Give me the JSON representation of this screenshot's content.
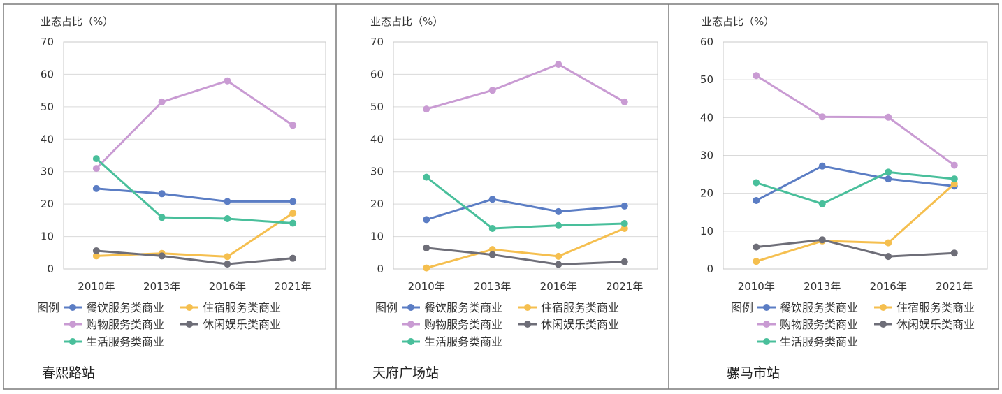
{
  "legend_title": "图例",
  "colors": {
    "餐饮服务类商业": "#5b7dc4",
    "住宿服务类商业": "#f5bf4f",
    "购物服务类商业": "#c99bd3",
    "休闲娱乐类商业": "#6e6e78",
    "生活服务类商业": "#49bf9b"
  },
  "chart_data": [
    {
      "type": "line",
      "station": "春熙路站",
      "ylabel": "业态占比（%）",
      "xlabel": "",
      "x": [
        "2010年",
        "2013年",
        "2016年",
        "2021年"
      ],
      "ylim": [
        0,
        70
      ],
      "yticks": [
        0,
        10,
        20,
        30,
        40,
        50,
        60,
        70
      ],
      "grid": true,
      "legend": "bottom",
      "series": [
        {
          "name": "餐饮服务类商业",
          "values": [
            24.8,
            23.2,
            20.8,
            20.8
          ]
        },
        {
          "name": "住宿服务类商业",
          "values": [
            4.0,
            4.8,
            3.8,
            17.2
          ]
        },
        {
          "name": "购物服务类商业",
          "values": [
            31.0,
            51.5,
            58.0,
            44.3
          ]
        },
        {
          "name": "休闲娱乐类商业",
          "values": [
            5.6,
            4.0,
            1.5,
            3.3
          ]
        },
        {
          "name": "生活服务类商业",
          "values": [
            34.0,
            15.9,
            15.5,
            14.1
          ]
        }
      ]
    },
    {
      "type": "line",
      "station": "天府广场站",
      "ylabel": "业态占比（%）",
      "xlabel": "",
      "x": [
        "2010年",
        "2013年",
        "2016年",
        "2021年"
      ],
      "ylim": [
        0,
        70
      ],
      "yticks": [
        0,
        10,
        20,
        30,
        40,
        50,
        60,
        70
      ],
      "grid": true,
      "legend": "bottom",
      "series": [
        {
          "name": "餐饮服务类商业",
          "values": [
            15.2,
            21.5,
            17.7,
            19.4
          ]
        },
        {
          "name": "住宿服务类商业",
          "values": [
            0.3,
            6.0,
            3.9,
            12.5
          ]
        },
        {
          "name": "购物服务类商业",
          "values": [
            49.3,
            55.1,
            63.1,
            51.5
          ]
        },
        {
          "name": "休闲娱乐类商业",
          "values": [
            6.5,
            4.4,
            1.4,
            2.2
          ]
        },
        {
          "name": "生活服务类商业",
          "values": [
            28.3,
            12.5,
            13.4,
            14.0
          ]
        }
      ]
    },
    {
      "type": "line",
      "station": "骡马市站",
      "ylabel": "业态占比（%）",
      "xlabel": "",
      "x": [
        "2010年",
        "2013年",
        "2016年",
        "2021年"
      ],
      "ylim": [
        0,
        60
      ],
      "yticks": [
        0,
        10,
        20,
        30,
        40,
        50,
        60
      ],
      "grid": true,
      "legend": "bottom",
      "series": [
        {
          "name": "餐饮服务类商业",
          "values": [
            18.1,
            27.2,
            23.8,
            21.9
          ]
        },
        {
          "name": "住宿服务类商业",
          "values": [
            2.0,
            7.4,
            6.9,
            22.5
          ]
        },
        {
          "name": "购物服务类商业",
          "values": [
            51.1,
            40.2,
            40.1,
            27.4
          ]
        },
        {
          "name": "休闲娱乐类商业",
          "values": [
            5.8,
            7.7,
            3.3,
            4.2
          ]
        },
        {
          "name": "生活服务类商业",
          "values": [
            22.8,
            17.2,
            25.6,
            23.8
          ]
        }
      ]
    }
  ]
}
